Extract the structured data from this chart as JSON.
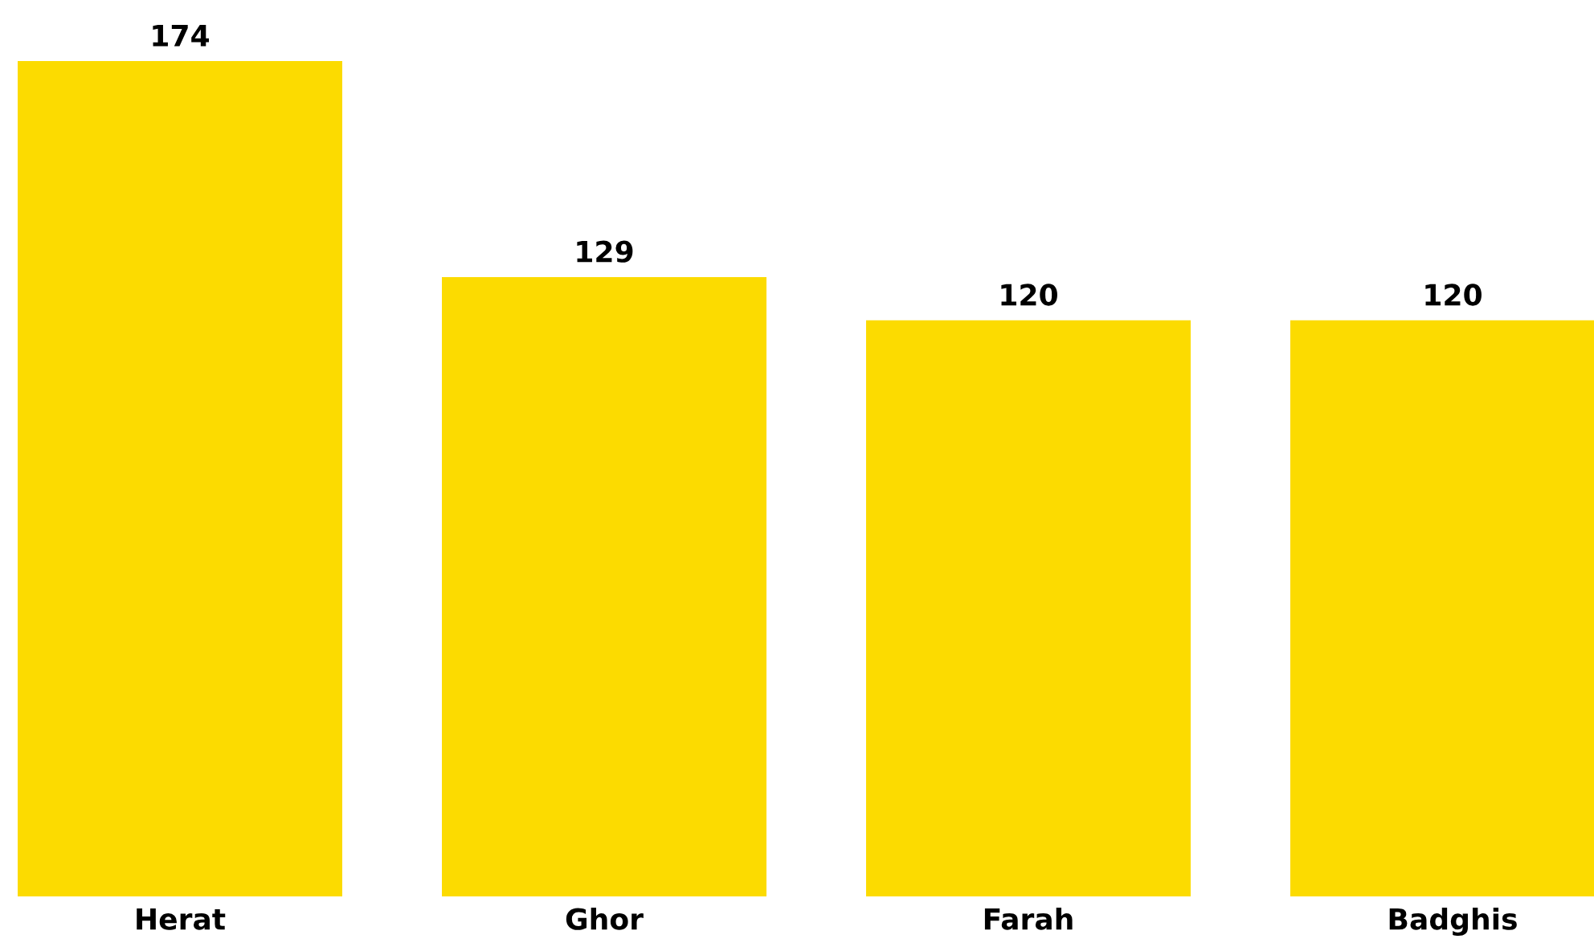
{
  "chart_data": {
    "type": "bar",
    "categories": [
      "Herat",
      "Ghor",
      "Farah",
      "Badghis"
    ],
    "values": [
      174,
      129,
      120,
      120
    ],
    "color": "#fcdb00",
    "data_labels": true
  }
}
